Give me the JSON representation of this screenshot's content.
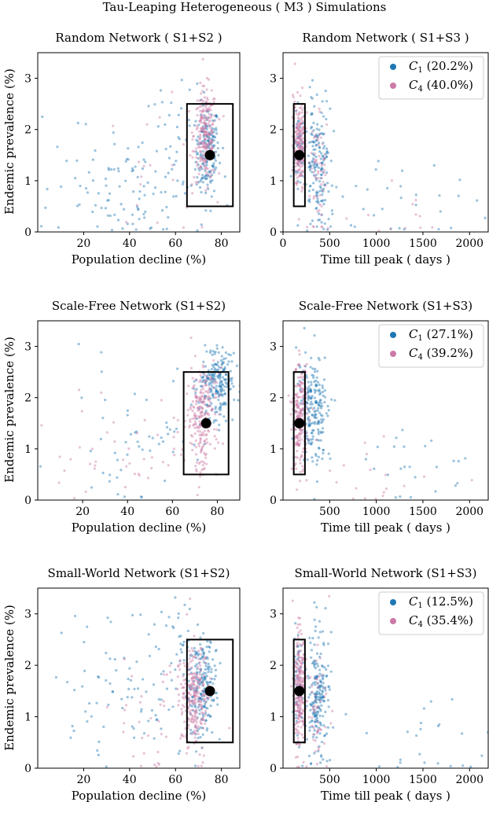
{
  "figure": {
    "suptitle": "Tau-Leaping Heterogeneous ( M3 ) Simulations"
  },
  "colors": {
    "c1": "#1f77b4",
    "c4": "#cc79a7",
    "point": "#000000",
    "box": "#000000"
  },
  "chart_data": [
    {
      "type": "scatter",
      "title": "Random Network ( S1+S2 )",
      "xlabel": "Population decline (%)",
      "ylabel": "Endemic prevalence (%)",
      "xlim": [
        0,
        88
      ],
      "ylim": [
        0,
        3.5
      ],
      "xticks": [
        20,
        40,
        60,
        80
      ],
      "yticks": [
        0,
        1,
        2,
        3
      ],
      "legend": null,
      "grid": false,
      "rect": {
        "x": [
          65,
          85
        ],
        "y": [
          0.5,
          2.5
        ]
      },
      "marker": {
        "x": 75,
        "y": 1.5
      },
      "series": [
        {
          "name": "",
          "color_key": "c1",
          "clusters": [
            {
              "x": 74,
              "y": 1.6,
              "sx": 2.5,
              "sy": 0.45,
              "n": 170
            },
            {
              "x": 40,
              "y": 0.9,
              "sx": 18,
              "sy": 0.6,
              "n": 110
            },
            {
              "x": 60,
              "y": 1.8,
              "sx": 10,
              "sy": 0.5,
              "n": 40
            }
          ]
        },
        {
          "name": "",
          "color_key": "c4",
          "clusters": [
            {
              "x": 73,
              "y": 1.9,
              "sx": 2.5,
              "sy": 0.45,
              "n": 220
            },
            {
              "x": 55,
              "y": 1.2,
              "sx": 14,
              "sy": 0.6,
              "n": 25
            }
          ]
        }
      ]
    },
    {
      "type": "scatter",
      "title": "Random Network ( S1+S3 )",
      "xlabel": "Time till peak ( days )",
      "ylabel": "",
      "xlim": [
        0,
        2200
      ],
      "ylim": [
        0,
        3.5
      ],
      "xticks": [
        0,
        500,
        1000,
        1500,
        2000
      ],
      "yticks": [
        0,
        1,
        2,
        3
      ],
      "legend": {
        "position": "upper right",
        "entries": [
          {
            "label": "C",
            "sub": "1",
            "pct": "(20.2%)",
            "color_key": "c1"
          },
          {
            "label": "C",
            "sub": "4",
            "pct": "(40.0%)",
            "color_key": "c4"
          }
        ]
      },
      "grid": false,
      "rect": {
        "x": [
          115,
          235
        ],
        "y": [
          0.5,
          2.5
        ]
      },
      "marker": {
        "x": 175,
        "y": 1.5
      },
      "series": [
        {
          "name": "",
          "color_key": "c1",
          "clusters": [
            {
              "x": 380,
              "y": 1.3,
              "sx": 70,
              "sy": 0.6,
              "n": 170
            },
            {
              "x": 170,
              "y": 1.5,
              "sx": 30,
              "sy": 0.5,
              "n": 60
            },
            {
              "x": 1300,
              "y": 0.6,
              "sx": 450,
              "sy": 0.5,
              "n": 30
            }
          ]
        },
        {
          "name": "",
          "color_key": "c4",
          "clusters": [
            {
              "x": 175,
              "y": 1.7,
              "sx": 30,
              "sy": 0.45,
              "n": 200
            },
            {
              "x": 380,
              "y": 1.1,
              "sx": 60,
              "sy": 0.5,
              "n": 60
            },
            {
              "x": 1100,
              "y": 0.5,
              "sx": 300,
              "sy": 0.4,
              "n": 12
            }
          ]
        }
      ]
    },
    {
      "type": "scatter",
      "title": "Scale-Free Network (S1+S2)",
      "xlabel": "Population decline (%)",
      "ylabel": "Endemic prevalence (%)",
      "xlim": [
        0,
        90
      ],
      "ylim": [
        0,
        3.5
      ],
      "xticks": [
        20,
        40,
        60,
        80
      ],
      "yticks": [
        0,
        1,
        2,
        3
      ],
      "legend": null,
      "grid": false,
      "rect": {
        "x": [
          65,
          85
        ],
        "y": [
          0.5,
          2.5
        ]
      },
      "marker": {
        "x": 75,
        "y": 1.5
      },
      "series": [
        {
          "name": "",
          "color_key": "c1",
          "clusters": [
            {
              "x": 80,
              "y": 2.3,
              "sx": 4,
              "sy": 0.35,
              "n": 220
            },
            {
              "x": 45,
              "y": 1.3,
              "sx": 18,
              "sy": 0.7,
              "n": 60
            }
          ]
        },
        {
          "name": "",
          "color_key": "c4",
          "clusters": [
            {
              "x": 73,
              "y": 1.6,
              "sx": 3.5,
              "sy": 0.5,
              "n": 230
            },
            {
              "x": 45,
              "y": 1.0,
              "sx": 18,
              "sy": 0.6,
              "n": 50
            }
          ]
        }
      ]
    },
    {
      "type": "scatter",
      "title": "Scale-Free Network (S1+S3)",
      "xlabel": "Time till peak ( days )",
      "ylabel": "",
      "xlim": [
        0,
        2200
      ],
      "ylim": [
        0,
        3.5
      ],
      "xticks": [
        500,
        1000,
        1500,
        2000
      ],
      "yticks": [
        0,
        1,
        2,
        3
      ],
      "legend": {
        "position": "upper right",
        "entries": [
          {
            "label": "C",
            "sub": "1",
            "pct": "(27.1%)",
            "color_key": "c1"
          },
          {
            "label": "C",
            "sub": "4",
            "pct": "(39.2%)",
            "color_key": "c4"
          }
        ]
      },
      "grid": false,
      "rect": {
        "x": [
          115,
          235
        ],
        "y": [
          0.5,
          2.5
        ]
      },
      "marker": {
        "x": 175,
        "y": 1.5
      },
      "series": [
        {
          "name": "",
          "color_key": "c1",
          "clusters": [
            {
              "x": 330,
              "y": 1.8,
              "sx": 90,
              "sy": 0.55,
              "n": 220
            },
            {
              "x": 1300,
              "y": 0.7,
              "sx": 450,
              "sy": 0.6,
              "n": 25
            }
          ]
        },
        {
          "name": "",
          "color_key": "c4",
          "clusters": [
            {
              "x": 180,
              "y": 1.6,
              "sx": 40,
              "sy": 0.5,
              "n": 220
            },
            {
              "x": 900,
              "y": 0.6,
              "sx": 400,
              "sy": 0.5,
              "n": 20
            }
          ]
        }
      ]
    },
    {
      "type": "scatter",
      "title": "Small-World Network (S1+S2)",
      "xlabel": "Population decline (%)",
      "ylabel": "Endemic prevalence (%)",
      "xlim": [
        0,
        88
      ],
      "ylim": [
        0,
        3.5
      ],
      "xticks": [
        20,
        40,
        60,
        80
      ],
      "yticks": [
        0,
        1,
        2,
        3
      ],
      "legend": null,
      "grid": false,
      "rect": {
        "x": [
          65,
          85
        ],
        "y": [
          0.5,
          2.5
        ]
      },
      "marker": {
        "x": 75,
        "y": 1.5
      },
      "series": [
        {
          "name": "",
          "color_key": "c1",
          "clusters": [
            {
              "x": 72,
              "y": 1.6,
              "sx": 3,
              "sy": 0.5,
              "n": 200
            },
            {
              "x": 40,
              "y": 1.3,
              "sx": 16,
              "sy": 0.7,
              "n": 90
            },
            {
              "x": 62,
              "y": 2.5,
              "sx": 5,
              "sy": 0.4,
              "n": 30
            }
          ]
        },
        {
          "name": "",
          "color_key": "c4",
          "clusters": [
            {
              "x": 68,
              "y": 1.4,
              "sx": 3,
              "sy": 0.5,
              "n": 250
            },
            {
              "x": 50,
              "y": 1.0,
              "sx": 12,
              "sy": 0.6,
              "n": 40
            }
          ]
        }
      ]
    },
    {
      "type": "scatter",
      "title": "Small-World Network (S1+S3)",
      "xlabel": "Time till peak ( days )",
      "ylabel": "",
      "xlim": [
        0,
        2200
      ],
      "ylim": [
        0,
        3.5
      ],
      "xticks": [
        500,
        1000,
        1500,
        2000
      ],
      "yticks": [
        0,
        1,
        2,
        3
      ],
      "legend": {
        "position": "upper right",
        "entries": [
          {
            "label": "C",
            "sub": "1",
            "pct": "(12.5%)",
            "color_key": "c1"
          },
          {
            "label": "C",
            "sub": "4",
            "pct": "(35.4%)",
            "color_key": "c4"
          }
        ]
      },
      "grid": false,
      "rect": {
        "x": [
          115,
          235
        ],
        "y": [
          0.5,
          2.5
        ]
      },
      "marker": {
        "x": 175,
        "y": 1.5
      },
      "series": [
        {
          "name": "",
          "color_key": "c1",
          "clusters": [
            {
              "x": 380,
              "y": 1.5,
              "sx": 60,
              "sy": 0.6,
              "n": 200
            },
            {
              "x": 175,
              "y": 1.6,
              "sx": 30,
              "sy": 0.5,
              "n": 50
            },
            {
              "x": 1400,
              "y": 0.6,
              "sx": 450,
              "sy": 0.6,
              "n": 30
            }
          ]
        },
        {
          "name": "",
          "color_key": "c4",
          "clusters": [
            {
              "x": 175,
              "y": 1.5,
              "sx": 30,
              "sy": 0.55,
              "n": 240
            },
            {
              "x": 380,
              "y": 1.2,
              "sx": 60,
              "sy": 0.5,
              "n": 50
            }
          ]
        }
      ]
    }
  ]
}
